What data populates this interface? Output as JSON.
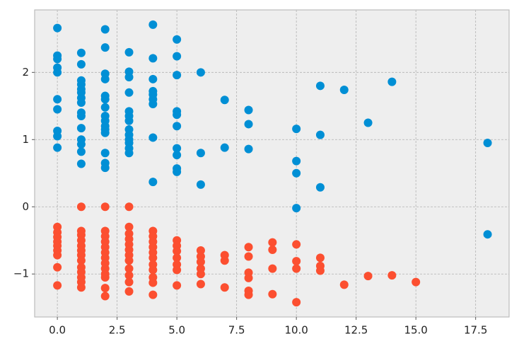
{
  "chart_data": {
    "type": "scatter",
    "xlim": [
      -0.95,
      18.9
    ],
    "ylim": [
      -1.64,
      2.93
    ],
    "xticks": [
      {
        "value": 0,
        "label": "0.0"
      },
      {
        "value": 2.5,
        "label": "2.5"
      },
      {
        "value": 5,
        "label": "5.0"
      },
      {
        "value": 7.5,
        "label": "7.5"
      },
      {
        "value": 10,
        "label": "10.0"
      },
      {
        "value": 12.5,
        "label": "12.5"
      },
      {
        "value": 15,
        "label": "15.0"
      },
      {
        "value": 17.5,
        "label": "17.5"
      }
    ],
    "yticks": [
      {
        "value": -1,
        "label": "−1"
      },
      0,
      1,
      2
    ],
    "grid": true,
    "series": [
      {
        "color": "#008fd5",
        "x": [
          0,
          0,
          0,
          0,
          0,
          0,
          0,
          0,
          0,
          0,
          1,
          1,
          1,
          1,
          1,
          1,
          1,
          1,
          1,
          1,
          1,
          1,
          1,
          1,
          1,
          2,
          2,
          2,
          2,
          2,
          2,
          2,
          2,
          2,
          2,
          2,
          2,
          2,
          2,
          2,
          3,
          3,
          3,
          3,
          3,
          3,
          3,
          3,
          3,
          3,
          3,
          3,
          3,
          4,
          4,
          4,
          4,
          4,
          4,
          4,
          4,
          4,
          5,
          5,
          5,
          5,
          5,
          5,
          5,
          5,
          5,
          5,
          6,
          6,
          6,
          7,
          7,
          8,
          8,
          8,
          10,
          10,
          10,
          10,
          11,
          11,
          11,
          12,
          13,
          14,
          18,
          18
        ],
        "values": [
          2.66,
          2.25,
          2.2,
          2.07,
          2.0,
          1.6,
          1.45,
          1.13,
          1.05,
          0.88,
          2.29,
          2.12,
          1.88,
          1.82,
          1.75,
          1.7,
          1.62,
          1.55,
          1.4,
          1.35,
          1.17,
          1.0,
          0.93,
          0.82,
          0.64,
          2.64,
          2.37,
          1.98,
          1.9,
          1.65,
          1.6,
          1.48,
          1.35,
          1.28,
          1.2,
          1.15,
          1.1,
          0.8,
          0.65,
          0.58,
          2.3,
          2.01,
          1.93,
          1.7,
          1.42,
          1.35,
          1.28,
          1.15,
          1.07,
          1.0,
          0.95,
          0.87,
          0.8,
          2.71,
          2.21,
          1.9,
          1.72,
          1.67,
          1.6,
          1.53,
          1.03,
          0.37,
          2.49,
          2.24,
          1.96,
          1.42,
          1.37,
          1.2,
          0.87,
          0.77,
          0.57,
          0.52,
          2.0,
          0.8,
          0.33,
          1.59,
          0.88,
          1.44,
          1.23,
          0.86,
          1.16,
          0.68,
          0.5,
          -0.02,
          1.8,
          1.07,
          0.29,
          1.74,
          1.25,
          1.86,
          0.95,
          -0.41
        ]
      },
      {
        "color": "#fc4f30",
        "x": [
          0,
          0,
          0,
          0,
          0,
          0,
          0,
          0,
          0,
          1,
          1,
          1,
          1,
          1,
          1,
          1,
          1,
          1,
          1,
          1,
          1,
          1,
          2,
          2,
          2,
          2,
          2,
          2,
          2,
          2,
          2,
          2,
          2,
          2,
          2,
          3,
          3,
          3,
          3,
          3,
          3,
          3,
          3,
          3,
          3,
          3,
          3,
          4,
          4,
          4,
          4,
          4,
          4,
          4,
          4,
          4,
          4,
          4,
          5,
          5,
          5,
          5,
          5,
          5,
          5,
          6,
          6,
          6,
          6,
          6,
          6,
          7,
          7,
          7,
          8,
          8,
          8,
          8,
          8,
          8,
          9,
          9,
          9,
          9,
          10,
          10,
          10,
          10,
          11,
          11,
          11,
          12,
          13,
          14,
          15
        ],
        "values": [
          -0.3,
          -0.38,
          -0.45,
          -0.52,
          -0.58,
          -0.65,
          -0.72,
          -0.9,
          -1.17,
          0.0,
          -0.36,
          -0.42,
          -0.5,
          -0.58,
          -0.65,
          -0.72,
          -0.8,
          -0.9,
          -0.97,
          -1.05,
          -1.12,
          -1.2,
          0.0,
          -0.36,
          -0.44,
          -0.52,
          -0.6,
          -0.68,
          -0.76,
          -0.84,
          -0.92,
          -1.0,
          -1.05,
          -1.21,
          -1.33,
          0.0,
          -0.3,
          -0.4,
          -0.48,
          -0.56,
          -0.64,
          -0.72,
          -0.8,
          -0.92,
          -1.02,
          -1.12,
          -1.26,
          -0.36,
          -0.44,
          -0.52,
          -0.6,
          -0.68,
          -0.76,
          -0.86,
          -0.94,
          -1.05,
          -1.13,
          -1.31,
          -0.5,
          -0.58,
          -0.66,
          -0.76,
          -0.86,
          -0.94,
          -1.17,
          -0.65,
          -0.74,
          -0.82,
          -0.92,
          -1.0,
          -1.15,
          -0.72,
          -0.8,
          -1.2,
          -0.6,
          -0.74,
          -0.98,
          -1.06,
          -1.25,
          -1.31,
          -0.53,
          -0.64,
          -0.92,
          -1.3,
          -0.56,
          -0.81,
          -0.92,
          -1.42,
          -0.76,
          -0.88,
          -0.95,
          -1.16,
          -1.03,
          -1.02,
          -1.12
        ]
      }
    ]
  }
}
